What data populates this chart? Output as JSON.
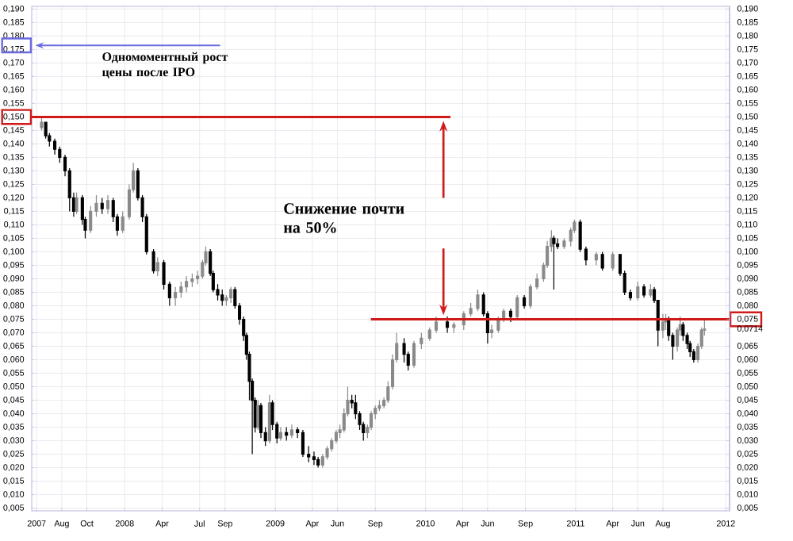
{
  "chart_data": {
    "type": "candlestick",
    "x": [
      "2007-06-13",
      "2007-06-23",
      "2007-07-02",
      "2007-07-15",
      "2007-07-27",
      "2007-08-09",
      "2007-08-20",
      "2007-08-30",
      "2007-09-06",
      "2007-09-20",
      "2007-09-27",
      "2007-10-10",
      "2007-10-24",
      "2007-11-07",
      "2007-11-21",
      "2007-12-04",
      "2007-12-14",
      "2007-12-27",
      "2008-01-12",
      "2008-01-22",
      "2008-02-02",
      "2008-02-13",
      "2008-02-23",
      "2008-03-11",
      "2008-03-21",
      "2008-04-05",
      "2008-04-19",
      "2008-05-03",
      "2008-05-17",
      "2008-05-30",
      "2008-06-13",
      "2008-06-26",
      "2008-07-08",
      "2008-07-16",
      "2008-07-27",
      "2008-08-03",
      "2008-08-14",
      "2008-08-25",
      "2008-09-04",
      "2008-09-15",
      "2008-09-25",
      "2008-10-06",
      "2008-10-16",
      "2008-10-23",
      "2008-10-30",
      "2008-11-06",
      "2008-11-13",
      "2008-11-20",
      "2008-11-27",
      "2008-12-08",
      "2008-12-18",
      "2008-12-25",
      "2009-01-05",
      "2009-01-14",
      "2009-01-28",
      "2009-02-10",
      "2009-02-24",
      "2009-03-09",
      "2009-03-23",
      "2009-04-05",
      "2009-04-15",
      "2009-04-26",
      "2009-05-07",
      "2009-05-18",
      "2009-05-29",
      "2009-06-07",
      "2009-06-17",
      "2009-06-26",
      "2009-07-06",
      "2009-07-15",
      "2009-07-25",
      "2009-08-03",
      "2009-08-13",
      "2009-08-22",
      "2009-09-01",
      "2009-09-11",
      "2009-09-22",
      "2009-10-02",
      "2009-10-13",
      "2009-10-23",
      "2009-11-10",
      "2009-11-20",
      "2009-12-04",
      "2009-12-22",
      "2010-01-11",
      "2010-01-27",
      "2010-02-23",
      "2010-03-11",
      "2010-04-04",
      "2010-04-21",
      "2010-05-08",
      "2010-05-22",
      "2010-06-01",
      "2010-06-11",
      "2010-06-27",
      "2010-07-10",
      "2010-07-27",
      "2010-08-12",
      "2010-08-29",
      "2010-09-13",
      "2010-09-29",
      "2010-10-15",
      "2010-10-24",
      "2010-11-03",
      "2010-11-09",
      "2010-11-18",
      "2010-12-04",
      "2010-12-20",
      "2010-12-29",
      "2011-01-12",
      "2011-01-26",
      "2011-02-20",
      "2011-03-07",
      "2011-04-01",
      "2011-04-19",
      "2011-04-30",
      "2011-05-14",
      "2011-06-01",
      "2011-06-16",
      "2011-07-02",
      "2011-07-11",
      "2011-07-20",
      "2011-08-01",
      "2011-08-08",
      "2011-08-15",
      "2011-08-25",
      "2011-09-05",
      "2011-09-12",
      "2011-09-19",
      "2011-09-29",
      "2011-10-06",
      "2011-10-15",
      "2011-10-25",
      "2011-11-03",
      "2011-11-10"
    ],
    "ohlc": [
      [
        0.146,
        0.15,
        0.145,
        0.148
      ],
      [
        0.148,
        0.148,
        0.142,
        0.143
      ],
      [
        0.143,
        0.144,
        0.139,
        0.141
      ],
      [
        0.141,
        0.142,
        0.136,
        0.138
      ],
      [
        0.138,
        0.139,
        0.133,
        0.135
      ],
      [
        0.135,
        0.136,
        0.128,
        0.13
      ],
      [
        0.13,
        0.131,
        0.115,
        0.12
      ],
      [
        0.12,
        0.122,
        0.113,
        0.115
      ],
      [
        0.115,
        0.122,
        0.114,
        0.12
      ],
      [
        0.12,
        0.121,
        0.11,
        0.112
      ],
      [
        0.112,
        0.113,
        0.105,
        0.108
      ],
      [
        0.108,
        0.117,
        0.107,
        0.115
      ],
      [
        0.115,
        0.121,
        0.113,
        0.118
      ],
      [
        0.118,
        0.12,
        0.114,
        0.116
      ],
      [
        0.116,
        0.121,
        0.114,
        0.119
      ],
      [
        0.119,
        0.12,
        0.111,
        0.113
      ],
      [
        0.113,
        0.114,
        0.106,
        0.108
      ],
      [
        0.108,
        0.115,
        0.107,
        0.113
      ],
      [
        0.113,
        0.125,
        0.112,
        0.123
      ],
      [
        0.123,
        0.133,
        0.122,
        0.13
      ],
      [
        0.13,
        0.131,
        0.119,
        0.12
      ],
      [
        0.12,
        0.121,
        0.111,
        0.113
      ],
      [
        0.113,
        0.114,
        0.099,
        0.1
      ],
      [
        0.1,
        0.101,
        0.092,
        0.093
      ],
      [
        0.093,
        0.098,
        0.091,
        0.096
      ],
      [
        0.096,
        0.097,
        0.086,
        0.088
      ],
      [
        0.088,
        0.089,
        0.08,
        0.083
      ],
      [
        0.083,
        0.087,
        0.08,
        0.085
      ],
      [
        0.085,
        0.089,
        0.083,
        0.087
      ],
      [
        0.087,
        0.091,
        0.085,
        0.089
      ],
      [
        0.089,
        0.092,
        0.087,
        0.09
      ],
      [
        0.09,
        0.093,
        0.088,
        0.091
      ],
      [
        0.091,
        0.097,
        0.09,
        0.096
      ],
      [
        0.096,
        0.102,
        0.095,
        0.1
      ],
      [
        0.1,
        0.101,
        0.091,
        0.092
      ],
      [
        0.092,
        0.093,
        0.085,
        0.086
      ],
      [
        0.086,
        0.088,
        0.082,
        0.084
      ],
      [
        0.084,
        0.086,
        0.08,
        0.082
      ],
      [
        0.082,
        0.084,
        0.08,
        0.083
      ],
      [
        0.083,
        0.087,
        0.081,
        0.086
      ],
      [
        0.086,
        0.087,
        0.079,
        0.08
      ],
      [
        0.08,
        0.081,
        0.073,
        0.075
      ],
      [
        0.075,
        0.076,
        0.067,
        0.069
      ],
      [
        0.069,
        0.07,
        0.06,
        0.062
      ],
      [
        0.062,
        0.063,
        0.045,
        0.052
      ],
      [
        0.052,
        0.053,
        0.025,
        0.045
      ],
      [
        0.045,
        0.046,
        0.033,
        0.035
      ],
      [
        0.035,
        0.045,
        0.034,
        0.043
      ],
      [
        0.043,
        0.044,
        0.031,
        0.033
      ],
      [
        0.033,
        0.035,
        0.028,
        0.03
      ],
      [
        0.03,
        0.047,
        0.029,
        0.044
      ],
      [
        0.044,
        0.045,
        0.034,
        0.036
      ],
      [
        0.036,
        0.037,
        0.029,
        0.031
      ],
      [
        0.031,
        0.035,
        0.03,
        0.033
      ],
      [
        0.033,
        0.035,
        0.03,
        0.032
      ],
      [
        0.032,
        0.036,
        0.031,
        0.034
      ],
      [
        0.034,
        0.035,
        0.031,
        0.033
      ],
      [
        0.033,
        0.034,
        0.024,
        0.025
      ],
      [
        0.025,
        0.028,
        0.022,
        0.024
      ],
      [
        0.024,
        0.026,
        0.021,
        0.023
      ],
      [
        0.023,
        0.024,
        0.02,
        0.021
      ],
      [
        0.021,
        0.025,
        0.02,
        0.024
      ],
      [
        0.024,
        0.028,
        0.023,
        0.027
      ],
      [
        0.027,
        0.031,
        0.026,
        0.03
      ],
      [
        0.03,
        0.034,
        0.029,
        0.033
      ],
      [
        0.033,
        0.036,
        0.031,
        0.034
      ],
      [
        0.034,
        0.042,
        0.033,
        0.04
      ],
      [
        0.04,
        0.05,
        0.039,
        0.045
      ],
      [
        0.045,
        0.047,
        0.042,
        0.044
      ],
      [
        0.044,
        0.047,
        0.038,
        0.04
      ],
      [
        0.04,
        0.041,
        0.034,
        0.036
      ],
      [
        0.036,
        0.037,
        0.03,
        0.033
      ],
      [
        0.033,
        0.036,
        0.031,
        0.035
      ],
      [
        0.035,
        0.041,
        0.034,
        0.04
      ],
      [
        0.04,
        0.043,
        0.038,
        0.042
      ],
      [
        0.042,
        0.045,
        0.041,
        0.043
      ],
      [
        0.043,
        0.046,
        0.042,
        0.045
      ],
      [
        0.045,
        0.052,
        0.044,
        0.05
      ],
      [
        0.05,
        0.062,
        0.049,
        0.06
      ],
      [
        0.06,
        0.07,
        0.059,
        0.066
      ],
      [
        0.066,
        0.068,
        0.059,
        0.062
      ],
      [
        0.062,
        0.063,
        0.056,
        0.058
      ],
      [
        0.058,
        0.067,
        0.057,
        0.066
      ],
      [
        0.066,
        0.07,
        0.064,
        0.068
      ],
      [
        0.068,
        0.072,
        0.067,
        0.071
      ],
      [
        0.071,
        0.076,
        0.07,
        0.074
      ],
      [
        0.074,
        0.076,
        0.07,
        0.072
      ],
      [
        0.072,
        0.074,
        0.07,
        0.073
      ],
      [
        0.073,
        0.078,
        0.071,
        0.077
      ],
      [
        0.077,
        0.081,
        0.076,
        0.079
      ],
      [
        0.079,
        0.086,
        0.078,
        0.084
      ],
      [
        0.084,
        0.085,
        0.076,
        0.077
      ],
      [
        0.077,
        0.078,
        0.066,
        0.07
      ],
      [
        0.07,
        0.073,
        0.068,
        0.071
      ],
      [
        0.071,
        0.076,
        0.07,
        0.075
      ],
      [
        0.075,
        0.079,
        0.074,
        0.078
      ],
      [
        0.078,
        0.079,
        0.074,
        0.076
      ],
      [
        0.076,
        0.084,
        0.075,
        0.083
      ],
      [
        0.083,
        0.084,
        0.079,
        0.08
      ],
      [
        0.08,
        0.088,
        0.079,
        0.087
      ],
      [
        0.087,
        0.092,
        0.086,
        0.09
      ],
      [
        0.09,
        0.096,
        0.089,
        0.095
      ],
      [
        0.095,
        0.104,
        0.094,
        0.102
      ],
      [
        0.102,
        0.108,
        0.1,
        0.105
      ],
      [
        0.105,
        0.106,
        0.086,
        0.103
      ],
      [
        0.103,
        0.105,
        0.101,
        0.102
      ],
      [
        0.102,
        0.105,
        0.101,
        0.104
      ],
      [
        0.104,
        0.109,
        0.102,
        0.108
      ],
      [
        0.108,
        0.112,
        0.107,
        0.111
      ],
      [
        0.111,
        0.112,
        0.1,
        0.101
      ],
      [
        0.101,
        0.102,
        0.095,
        0.097
      ],
      [
        0.097,
        0.1,
        0.095,
        0.099
      ],
      [
        0.099,
        0.1,
        0.093,
        0.094
      ],
      [
        0.094,
        0.1,
        0.093,
        0.099
      ],
      [
        0.099,
        0.099,
        0.091,
        0.092
      ],
      [
        0.092,
        0.093,
        0.084,
        0.085
      ],
      [
        0.085,
        0.086,
        0.082,
        0.083
      ],
      [
        0.083,
        0.089,
        0.082,
        0.087
      ],
      [
        0.087,
        0.088,
        0.083,
        0.084
      ],
      [
        0.084,
        0.088,
        0.083,
        0.086
      ],
      [
        0.086,
        0.087,
        0.081,
        0.082
      ],
      [
        0.082,
        0.082,
        0.065,
        0.071
      ],
      [
        0.071,
        0.077,
        0.068,
        0.074
      ],
      [
        0.074,
        0.077,
        0.071,
        0.075
      ],
      [
        0.075,
        0.076,
        0.067,
        0.069
      ],
      [
        0.069,
        0.07,
        0.06,
        0.065
      ],
      [
        0.065,
        0.072,
        0.063,
        0.071
      ],
      [
        0.071,
        0.076,
        0.069,
        0.073
      ],
      [
        0.073,
        0.074,
        0.067,
        0.069
      ],
      [
        0.069,
        0.07,
        0.064,
        0.066
      ],
      [
        0.066,
        0.067,
        0.061,
        0.063
      ],
      [
        0.063,
        0.064,
        0.059,
        0.06
      ],
      [
        0.06,
        0.066,
        0.059,
        0.065
      ],
      [
        0.065,
        0.072,
        0.064,
        0.071
      ],
      [
        0.071,
        0.075,
        0.069,
        0.0714
      ]
    ],
    "xlim": [
      "2007-05-20",
      "2012-01-10"
    ],
    "xticks": [
      {
        "value": "2007-06-01",
        "label": "2007"
      },
      {
        "value": "2007-08-01",
        "label": "Aug"
      },
      {
        "value": "2007-10-01",
        "label": "Oct"
      },
      {
        "value": "2008-01-01",
        "label": "2008"
      },
      {
        "value": "2008-04-01",
        "label": "Apr"
      },
      {
        "value": "2008-07-01",
        "label": "Jul"
      },
      {
        "value": "2008-09-01",
        "label": "Sep"
      },
      {
        "value": "2009-01-01",
        "label": "2009"
      },
      {
        "value": "2009-04-01",
        "label": "Apr"
      },
      {
        "value": "2009-06-01",
        "label": "Jun"
      },
      {
        "value": "2009-09-01",
        "label": "Sep"
      },
      {
        "value": "2010-01-01",
        "label": "2010"
      },
      {
        "value": "2010-04-01",
        "label": "Apr"
      },
      {
        "value": "2010-06-01",
        "label": "Jun"
      },
      {
        "value": "2010-09-01",
        "label": "Sep"
      },
      {
        "value": "2011-01-01",
        "label": "2011"
      },
      {
        "value": "2011-04-01",
        "label": "Apr"
      },
      {
        "value": "2011-06-01",
        "label": "Jun"
      },
      {
        "value": "2011-08-01",
        "label": "Aug"
      },
      {
        "value": "2012-01-01",
        "label": "2012"
      }
    ],
    "ylim": [
      0.004,
      0.191
    ],
    "yticks": [
      {
        "value": 0.005,
        "label": "0,005"
      },
      {
        "value": 0.01,
        "label": "0,010"
      },
      {
        "value": 0.015,
        "label": "0,015"
      },
      {
        "value": 0.02,
        "label": "0,020"
      },
      {
        "value": 0.025,
        "label": "0,025"
      },
      {
        "value": 0.03,
        "label": "0,030"
      },
      {
        "value": 0.035,
        "label": "0,035"
      },
      {
        "value": 0.04,
        "label": "0,040"
      },
      {
        "value": 0.045,
        "label": "0,045"
      },
      {
        "value": 0.05,
        "label": "0,050"
      },
      {
        "value": 0.055,
        "label": "0,055"
      },
      {
        "value": 0.06,
        "label": "0,060"
      },
      {
        "value": 0.065,
        "label": "0,065"
      },
      {
        "value": 0.07,
        "label": "0,070"
      },
      {
        "value": 0.075,
        "label": "0,075"
      },
      {
        "value": 0.08,
        "label": "0,080"
      },
      {
        "value": 0.085,
        "label": "0,085"
      },
      {
        "value": 0.09,
        "label": "0,090"
      },
      {
        "value": 0.095,
        "label": "0,095"
      },
      {
        "value": 0.1,
        "label": "0,100"
      },
      {
        "value": 0.105,
        "label": "0,105"
      },
      {
        "value": 0.11,
        "label": "0,110"
      },
      {
        "value": 0.115,
        "label": "0,115"
      },
      {
        "value": 0.12,
        "label": "0,120"
      },
      {
        "value": 0.125,
        "label": "0,125"
      },
      {
        "value": 0.13,
        "label": "0,130"
      },
      {
        "value": 0.135,
        "label": "0,135"
      },
      {
        "value": 0.14,
        "label": "0,140"
      },
      {
        "value": 0.145,
        "label": "0,145"
      },
      {
        "value": 0.15,
        "label": "0,150"
      },
      {
        "value": 0.155,
        "label": "0,155"
      },
      {
        "value": 0.16,
        "label": "0,160"
      },
      {
        "value": 0.165,
        "label": "0,165"
      },
      {
        "value": 0.17,
        "label": "0,170"
      },
      {
        "value": 0.175,
        "label": "0,175"
      },
      {
        "value": 0.18,
        "label": "0,180"
      },
      {
        "value": 0.185,
        "label": "0,185"
      },
      {
        "value": 0.19,
        "label": "0,190"
      }
    ],
    "y2lim": [
      0.004,
      0.191
    ],
    "y2ticks": [
      {
        "value": 0.005,
        "label": "0,005"
      },
      {
        "value": 0.01,
        "label": "0,010"
      },
      {
        "value": 0.015,
        "label": "0,015"
      },
      {
        "value": 0.02,
        "label": "0,020"
      },
      {
        "value": 0.025,
        "label": "0,025"
      },
      {
        "value": 0.03,
        "label": "0,030"
      },
      {
        "value": 0.035,
        "label": "0,035"
      },
      {
        "value": 0.04,
        "label": "0,040"
      },
      {
        "value": 0.045,
        "label": "0,045"
      },
      {
        "value": 0.05,
        "label": "0,050"
      },
      {
        "value": 0.055,
        "label": "0,055"
      },
      {
        "value": 0.06,
        "label": "0,060"
      },
      {
        "value": 0.065,
        "label": "0,065"
      },
      {
        "value": 0.0714,
        "label": "0,0714"
      },
      {
        "value": 0.075,
        "label": "0,075"
      },
      {
        "value": 0.08,
        "label": "0,080"
      },
      {
        "value": 0.085,
        "label": "0,085"
      },
      {
        "value": 0.09,
        "label": "0,090"
      },
      {
        "value": 0.095,
        "label": "0,095"
      },
      {
        "value": 0.1,
        "label": "0,100"
      },
      {
        "value": 0.105,
        "label": "0,105"
      },
      {
        "value": 0.11,
        "label": "0,110"
      },
      {
        "value": 0.115,
        "label": "0,115"
      },
      {
        "value": 0.12,
        "label": "0,120"
      },
      {
        "value": 0.125,
        "label": "0,125"
      },
      {
        "value": 0.13,
        "label": "0,130"
      },
      {
        "value": 0.135,
        "label": "0,135"
      },
      {
        "value": 0.14,
        "label": "0,140"
      },
      {
        "value": 0.145,
        "label": "0,145"
      },
      {
        "value": 0.15,
        "label": "0,150"
      },
      {
        "value": 0.155,
        "label": "0,155"
      },
      {
        "value": 0.16,
        "label": "0,160"
      },
      {
        "value": 0.165,
        "label": "0,165"
      },
      {
        "value": 0.17,
        "label": "0,170"
      },
      {
        "value": 0.175,
        "label": "0,175"
      },
      {
        "value": 0.18,
        "label": "0,180"
      },
      {
        "value": 0.185,
        "label": "0,185"
      },
      {
        "value": 0.19,
        "label": "0,190"
      }
    ],
    "grid": true,
    "ref_lines": [
      {
        "axis": "y",
        "value": 0.15,
        "color": "#d01a1a"
      },
      {
        "axis": "y",
        "value": 0.075,
        "color": "#d01a1a"
      }
    ],
    "annotations": [
      "Одномоментный рост цены после IPO",
      "Снижение почти на 50%"
    ]
  }
}
